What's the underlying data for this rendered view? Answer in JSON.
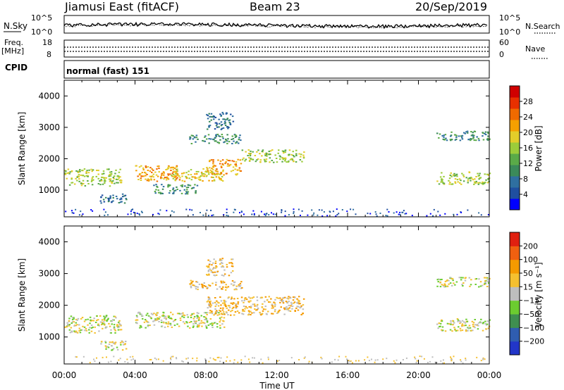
{
  "header": {
    "station": "Jiamusi East (fitACF)",
    "beam": "Beam 23",
    "date": "20/Sep/2019"
  },
  "noise_panel": {
    "left_label": "N.Sky",
    "right_label": "N.Search",
    "left_ticks": [
      "10^5",
      "10^0"
    ],
    "right_ticks": [
      "10^5",
      "10^0"
    ]
  },
  "freq_panel": {
    "left_label_1": "Freq.",
    "left_label_2": "[MHz]",
    "left_ticks": [
      "18",
      "8"
    ],
    "right_label": "Nave",
    "right_ticks": [
      "60",
      "0"
    ]
  },
  "cpid": {
    "label": "CPID",
    "value": "normal (fast) 151"
  },
  "colors": {
    "power": [
      "#0000ff",
      "#1f4fa0",
      "#2f6fa0",
      "#3b8a5a",
      "#5aaa48",
      "#9ccc3a",
      "#e3cd2a",
      "#f5a000",
      "#f06a00",
      "#e83000",
      "#d00000"
    ],
    "velocity": [
      "#2236c8",
      "#2f5db0",
      "#3f8f50",
      "#6ccc30",
      "#bebebe",
      "#f5c030",
      "#f59a00",
      "#f06010",
      "#e02010"
    ]
  },
  "chart_data": [
    {
      "type": "heatmap",
      "name": "power",
      "ylabel": "Slant Range [km]",
      "ylim": [
        150,
        4500
      ],
      "y_ticks": [
        "1000",
        "2000",
        "3000",
        "4000"
      ],
      "x_ticks": [
        "00:00",
        "04:00",
        "08:00",
        "12:00",
        "16:00",
        "20:00",
        "00:00"
      ],
      "colorbar_label": "Power [dB]",
      "colorbar_ticks": [
        "4",
        "8",
        "12",
        "16",
        "20",
        "24",
        "28"
      ],
      "scatter_regions": [
        {
          "t": [
            0.0,
            3.2
          ],
          "r": [
            1150,
            1700
          ],
          "level": 5
        },
        {
          "t": [
            2.0,
            3.5
          ],
          "r": [
            600,
            900
          ],
          "level": 2
        },
        {
          "t": [
            4.0,
            6.5
          ],
          "r": [
            1300,
            1800
          ],
          "level": 7
        },
        {
          "t": [
            6.0,
            9.0
          ],
          "r": [
            1300,
            1700
          ],
          "level": 6
        },
        {
          "t": [
            8.0,
            10.0
          ],
          "r": [
            1500,
            2000
          ],
          "level": 7
        },
        {
          "t": [
            10.0,
            13.5
          ],
          "r": [
            1900,
            2300
          ],
          "level": 5
        },
        {
          "t": [
            7.0,
            10.0
          ],
          "r": [
            2500,
            2800
          ],
          "level": 3
        },
        {
          "t": [
            8.0,
            9.5
          ],
          "r": [
            2950,
            3500
          ],
          "level": 2
        },
        {
          "t": [
            5.0,
            7.5
          ],
          "r": [
            900,
            1200
          ],
          "level": 3
        },
        {
          "t": [
            21.0,
            24.0
          ],
          "r": [
            1200,
            1600
          ],
          "level": 5
        },
        {
          "t": [
            21.0,
            24.0
          ],
          "r": [
            2600,
            2900
          ],
          "level": 3
        }
      ]
    },
    {
      "type": "heatmap",
      "name": "velocity",
      "ylabel": "Slant Range [km]",
      "ylim": [
        150,
        4500
      ],
      "y_ticks": [
        "1000",
        "2000",
        "3000",
        "4000"
      ],
      "x_ticks": [
        "00:00",
        "04:00",
        "08:00",
        "12:00",
        "16:00",
        "20:00",
        "00:00"
      ],
      "xlabel": "Time UT",
      "colorbar_label": "Velocity [m s⁻¹]",
      "colorbar_ticks": [
        "200",
        "100",
        "50",
        "15",
        "−15",
        "−50",
        "−100",
        "−200"
      ],
      "scatter_regions": [
        {
          "t": [
            0.0,
            3.2
          ],
          "r": [
            1150,
            1700
          ],
          "level": 4
        },
        {
          "t": [
            2.0,
            3.5
          ],
          "r": [
            600,
            900
          ],
          "level": 4
        },
        {
          "t": [
            4.0,
            9.0
          ],
          "r": [
            1300,
            1800
          ],
          "level": 4
        },
        {
          "t": [
            8.0,
            13.5
          ],
          "r": [
            1700,
            2300
          ],
          "level": 5
        },
        {
          "t": [
            7.0,
            10.0
          ],
          "r": [
            2500,
            2800
          ],
          "level": 5
        },
        {
          "t": [
            8.0,
            9.5
          ],
          "r": [
            2950,
            3500
          ],
          "level": 5
        },
        {
          "t": [
            21.0,
            24.0
          ],
          "r": [
            1200,
            1600
          ],
          "level": 4
        },
        {
          "t": [
            21.0,
            24.0
          ],
          "r": [
            2600,
            2900
          ],
          "level": 4
        }
      ]
    }
  ]
}
